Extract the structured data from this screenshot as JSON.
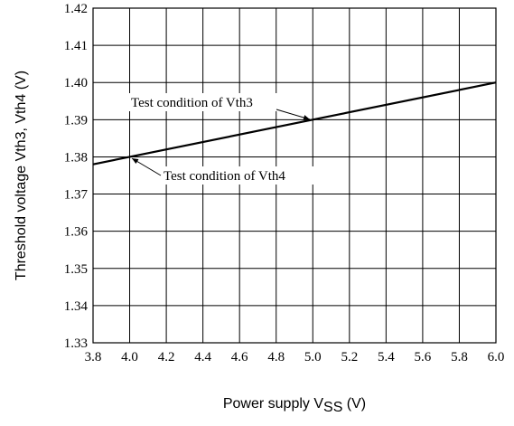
{
  "chart_data": {
    "type": "line",
    "ylabel": "Threshold voltage   Vth3, Vth4  (V)",
    "xlabel": [
      "Power supply  V",
      "SS",
      "  (V)"
    ],
    "x": [
      3.8,
      4.0,
      5.0,
      6.0
    ],
    "series": [
      {
        "color": "#000000",
        "values": [
          1.378,
          1.38,
          1.39,
          1.4
        ]
      }
    ],
    "xlim": [
      3.8,
      6.0
    ],
    "ylim": [
      1.33,
      1.42
    ],
    "xticks": [
      3.8,
      {
        "value": 4,
        "label": "4.0"
      },
      4.2,
      4.4,
      4.6,
      4.8,
      {
        "value": 5,
        "label": "5.0"
      },
      5.2,
      5.4,
      5.6,
      5.8,
      {
        "value": 6,
        "label": "6.0"
      }
    ],
    "yticks": [
      1.33,
      1.34,
      1.35,
      1.36,
      1.37,
      1.38,
      1.39,
      {
        "value": 1.4,
        "label": "1.40"
      },
      1.41,
      1.42
    ],
    "grid": true,
    "annotations": [
      "Test condition of Vth3",
      "Test condition of Vth4"
    ]
  }
}
